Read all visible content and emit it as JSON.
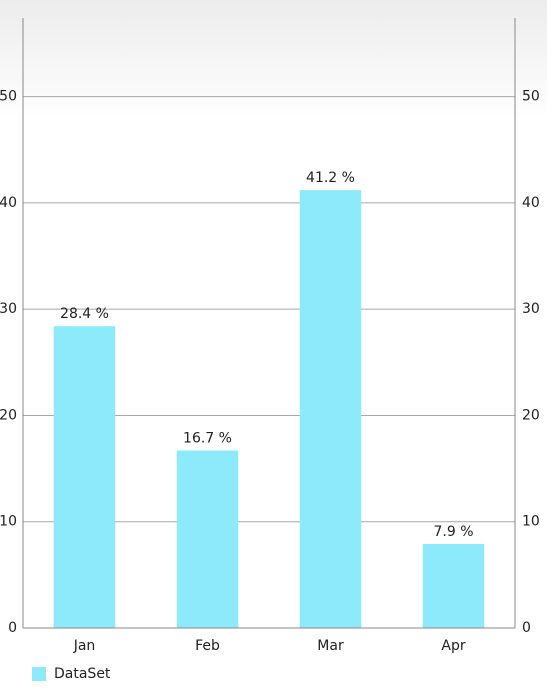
{
  "chart_data": {
    "type": "bar",
    "categories": [
      "Jan",
      "Feb",
      "Mar",
      "Apr"
    ],
    "series": [
      {
        "name": "DataSet",
        "color": "#8ceafb",
        "values": [
          28.4,
          16.7,
          41.2,
          7.9
        ],
        "value_labels": [
          "28.4 %",
          "16.7 %",
          "41.2 %",
          "7.9 %"
        ]
      }
    ],
    "ylim": [
      0,
      57.4
    ],
    "yticks": [
      0,
      10,
      20,
      30,
      40,
      50
    ],
    "grid": true,
    "legend": "bottom-left"
  }
}
